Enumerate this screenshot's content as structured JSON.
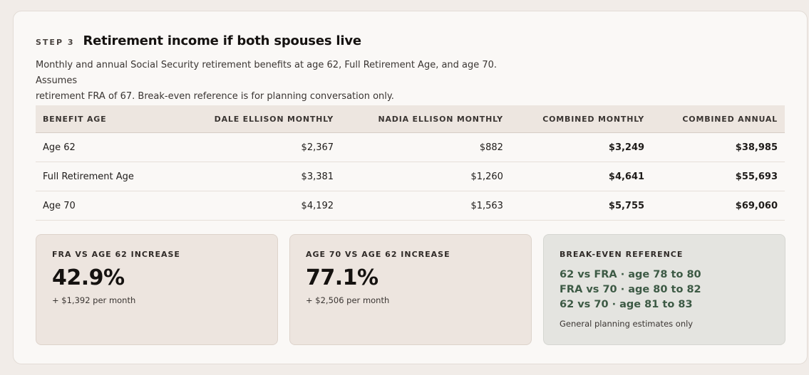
{
  "header": {
    "step": "STEP 3",
    "title": "Retirement income if both spouses live",
    "subtitle_line1": "Monthly and annual Social Security retirement benefits at age 62, Full Retirement Age, and age 70. Assumes",
    "subtitle_line2": "retirement FRA of 67. Break-even reference is for planning conversation only."
  },
  "table": {
    "columns": [
      "BENEFIT AGE",
      "DALE ELLISON MONTHLY",
      "NADIA ELLISON MONTHLY",
      "COMBINED MONTHLY",
      "COMBINED ANNUAL"
    ],
    "rows": [
      {
        "age": "Age 62",
        "dale": "$2,367",
        "nadia": "$882",
        "combined_monthly": "$3,249",
        "combined_annual": "$38,985"
      },
      {
        "age": "Full Retirement Age",
        "dale": "$3,381",
        "nadia": "$1,260",
        "combined_monthly": "$4,641",
        "combined_annual": "$55,693"
      },
      {
        "age": "Age 70",
        "dale": "$4,192",
        "nadia": "$1,563",
        "combined_monthly": "$5,755",
        "combined_annual": "$69,060"
      }
    ]
  },
  "stats": {
    "fra_increase": {
      "label": "FRA VS AGE 62 INCREASE",
      "value": "42.9%",
      "note": "+ $1,392 per month"
    },
    "age70_increase": {
      "label": "AGE 70 VS AGE 62 INCREASE",
      "value": "77.1%",
      "note": "+ $2,506 per month"
    },
    "breakeven": {
      "label": "BREAK-EVEN REFERENCE",
      "lines": [
        "62 vs FRA · age 78 to 80",
        "FRA vs 70 · age 80 to 82",
        "62 vs 70 · age 81 to 83"
      ],
      "note": "General planning estimates only"
    }
  },
  "colors": {
    "page_bg": "#f1ece8",
    "card_bg": "#faf8f6",
    "table_header_bg": "#ede6e0",
    "stat_box_bg": "#ede5df",
    "breakeven_box_bg": "#e4e4e0",
    "breakeven_text": "#3d5a45"
  }
}
